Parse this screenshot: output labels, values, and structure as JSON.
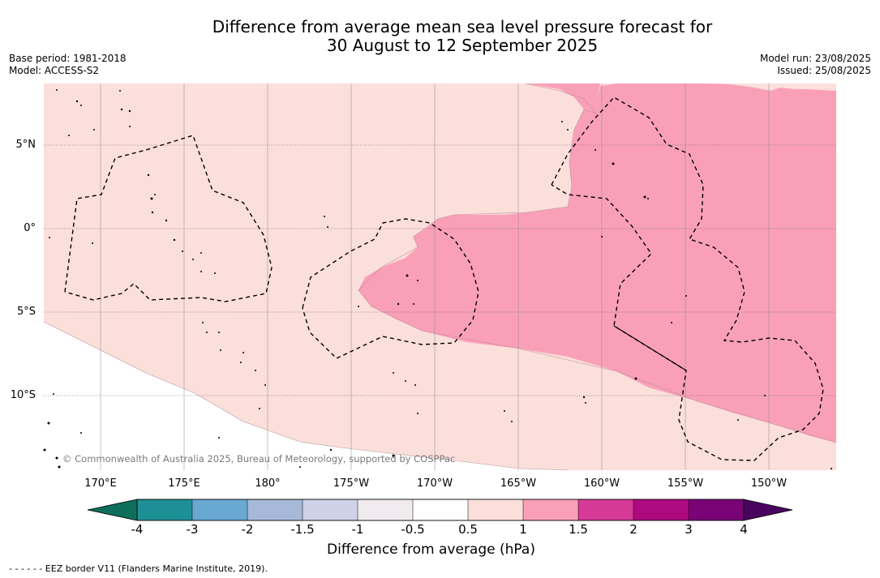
{
  "title": {
    "line1": "Difference from average mean sea level pressure forecast for",
    "line2": "30 August to 12 September 2025"
  },
  "meta_left": {
    "base_period": "Base period: 1981-2018",
    "model": "Model: ACCESS-S2"
  },
  "meta_right": {
    "model_run": "Model run: 23/08/2025",
    "issued": "Issued: 25/08/2025"
  },
  "map": {
    "copyright": "© Commonwealth of Australia 2025, Bureau of Meteorology, supported by COSPPac",
    "lat_labels": [
      "5°N",
      "0°",
      "5°S",
      "10°S"
    ],
    "lon_labels": [
      "170°E",
      "175°E",
      "180°",
      "175°W",
      "170°W",
      "165°W",
      "160°W",
      "155°W",
      "150°W"
    ],
    "colors": {
      "light_pink": "#fbdfdb",
      "mid_pink": "#f9a0b7",
      "land": "#ffffff"
    }
  },
  "colorbar": {
    "title": "Difference from average (hPa)",
    "ticks": [
      "-4",
      "-3",
      "-2",
      "-1.5",
      "-1",
      "-0.5",
      "0.5",
      "1",
      "1.5",
      "2",
      "3",
      "4"
    ],
    "colors": [
      "#0e6e5c",
      "#1f8f96",
      "#69a8d0",
      "#a6b9d9",
      "#cfd1e8",
      "#f1eaef",
      "#ffffff",
      "#fbdfdb",
      "#f9a0b7",
      "#d63a97",
      "#ae0a7f",
      "#7a0377",
      "#4a0460"
    ]
  },
  "footer": "- -  - -  - - EEZ border V11 (Flanders Marine Institute, 2019)."
}
